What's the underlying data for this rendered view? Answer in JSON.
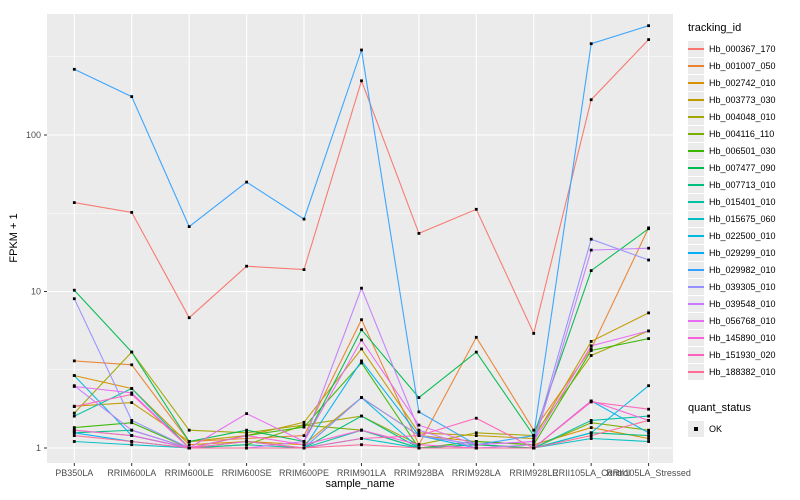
{
  "figure": {
    "y_axis_title": "FPKM + 1",
    "x_axis_title": "sample_name",
    "legend_title": "tracking_id",
    "quant_legend_title": "quant_status"
  },
  "chart_data": {
    "type": "line",
    "title": "",
    "xlabel": "sample_name",
    "ylabel": "FPKM + 1",
    "y_scale": "log10",
    "ylim": [
      0.8,
      600
    ],
    "y_ticks": [
      1,
      10,
      100
    ],
    "y_tick_labels": [
      "1",
      "10",
      "100"
    ],
    "y_minor_ticks": [
      3.162,
      31.62,
      316.2
    ],
    "grid": true,
    "panel_bg": "#ebebeb",
    "grid_color": "#ffffff",
    "tick_label_color": "#4d4d4d",
    "legend_position": "right",
    "marker": {
      "shape": "square",
      "color": "#000000",
      "label": "OK"
    },
    "categories": [
      "PB350LA",
      "RRIM600LA",
      "RRIM600LE",
      "RRIM600SE",
      "RRIM600PE",
      "RRIM901LA",
      "RRIM928BA",
      "RRIM928LA",
      "RRIM928LE",
      "RRII105LA_Control",
      "RRII105LA_Stressed"
    ],
    "series": [
      {
        "name": "Hb_000367_170",
        "color": "#F8766D",
        "values": [
          37,
          32,
          6.8,
          14.5,
          13.8,
          222,
          23.5,
          33.5,
          5.4,
          168,
          407
        ]
      },
      {
        "name": "Hb_001007_050",
        "color": "#EA8331",
        "values": [
          3.6,
          3.4,
          1.1,
          1.15,
          1.2,
          6.6,
          1.05,
          5.1,
          1.3,
          4.3,
          25.5
        ]
      },
      {
        "name": "Hb_002742_010",
        "color": "#D89000",
        "values": [
          2.9,
          2.4,
          1.05,
          1.1,
          1.05,
          2.1,
          1.2,
          1.1,
          1.05,
          1.35,
          1.15
        ]
      },
      {
        "name": "Hb_003773_030",
        "color": "#C09B00",
        "values": [
          1.85,
          1.95,
          1.1,
          1.2,
          1.46,
          4.3,
          1.25,
          1.2,
          1.15,
          4.8,
          7.3
        ]
      },
      {
        "name": "Hb_004048_010",
        "color": "#A3A500",
        "values": [
          1.67,
          4.1,
          1.3,
          1.25,
          1.4,
          1.6,
          1.05,
          1.25,
          1.2,
          3.9,
          5.6
        ]
      },
      {
        "name": "Hb_004116_110",
        "color": "#7CAE00",
        "values": [
          1.3,
          1.2,
          1.0,
          1.05,
          1.4,
          1.3,
          1.0,
          1.05,
          1.0,
          1.45,
          1.3
        ]
      },
      {
        "name": "Hb_006501_030",
        "color": "#39B600",
        "values": [
          1.35,
          1.45,
          1.0,
          1.2,
          1.36,
          3.5,
          1.0,
          1.1,
          1.05,
          4.2,
          5.0
        ]
      },
      {
        "name": "Hb_007477_090",
        "color": "#00BB4E",
        "values": [
          10.2,
          4.1,
          1.1,
          1.3,
          1.1,
          5.7,
          2.1,
          4.1,
          1.2,
          13.6,
          25.2
        ]
      },
      {
        "name": "Hb_007713_010",
        "color": "#00BF7D",
        "values": [
          1.25,
          1.3,
          1.0,
          1.1,
          1.0,
          1.6,
          1.0,
          1.05,
          1.0,
          1.25,
          1.2
        ]
      },
      {
        "name": "Hb_015401_010",
        "color": "#00C1A3",
        "values": [
          1.6,
          2.4,
          1.0,
          1.05,
          1.0,
          1.3,
          1.0,
          1.0,
          1.0,
          1.5,
          1.6
        ]
      },
      {
        "name": "Hb_015675_060",
        "color": "#00BFC4",
        "values": [
          1.1,
          1.05,
          1.0,
          1.0,
          1.0,
          1.15,
          1.0,
          1.0,
          1.0,
          1.15,
          1.1
        ]
      },
      {
        "name": "Hb_022500_010",
        "color": "#00BAE0",
        "values": [
          2.9,
          1.2,
          1.0,
          1.0,
          1.0,
          2.1,
          1.0,
          1.0,
          1.0,
          1.25,
          2.5
        ]
      },
      {
        "name": "Hb_029299_010",
        "color": "#00B0F6",
        "values": [
          1.25,
          1.1,
          1.0,
          1.0,
          1.0,
          3.6,
          1.2,
          1.0,
          1.0,
          2.0,
          1.25
        ]
      },
      {
        "name": "Hb_029982_010",
        "color": "#35A2FF",
        "values": [
          263,
          176,
          26,
          50,
          29,
          349,
          1.7,
          1.05,
          1.2,
          383,
          499
        ]
      },
      {
        "name": "Hb_039305_010",
        "color": "#9590FF",
        "values": [
          9.0,
          1.5,
          1.0,
          1.0,
          1.0,
          2.1,
          1.2,
          1.05,
          1.1,
          21.6,
          15.9
        ]
      },
      {
        "name": "Hb_039548_010",
        "color": "#C77CFF",
        "values": [
          2.5,
          1.3,
          1.0,
          1.0,
          1.1,
          10.5,
          1.3,
          1.0,
          1.05,
          18.4,
          18.9
        ]
      },
      {
        "name": "Hb_056768_010",
        "color": "#E76BF3",
        "values": [
          2.47,
          2.25,
          1.0,
          1.66,
          1.1,
          4.9,
          1.4,
          1.05,
          1.1,
          4.5,
          5.6
        ]
      },
      {
        "name": "Hb_145890_010",
        "color": "#FA62DB",
        "values": [
          1.3,
          1.2,
          1.0,
          1.2,
          1.05,
          1.3,
          1.05,
          1.0,
          1.0,
          2.0,
          1.5
        ]
      },
      {
        "name": "Hb_151930_020",
        "color": "#FF62BC",
        "values": [
          1.84,
          2.2,
          1.0,
          1.1,
          1.0,
          1.15,
          1.2,
          1.55,
          1.0,
          1.97,
          1.77
        ]
      },
      {
        "name": "Hb_188382_010",
        "color": "#FF6A98",
        "values": [
          1.2,
          1.1,
          1.0,
          1.0,
          1.0,
          1.05,
          1.0,
          1.0,
          1.0,
          1.2,
          1.5
        ]
      }
    ]
  }
}
